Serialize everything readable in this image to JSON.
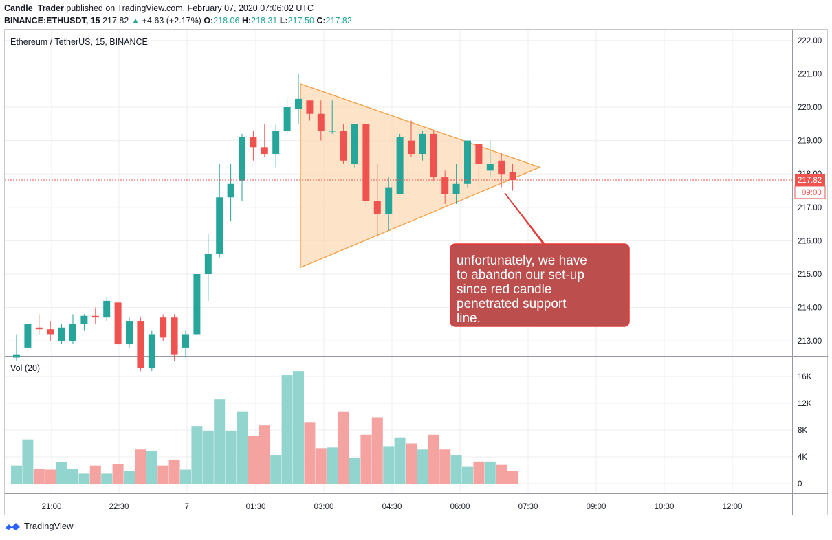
{
  "header": {
    "publisher": "Candle_Trader",
    "published_text": "published on TradingView.com, February 07, 2020 07:06:02 UTC",
    "symbol": "BINANCE:ETHUSDT, 15",
    "last": "217.82",
    "change": "+4.63 (+2.17%)",
    "o_label": "O:",
    "o": "218.06",
    "h_label": "H:",
    "h": "218.31",
    "l_label": "L:",
    "l": "217.50",
    "c_label": "C:",
    "c": "217.82"
  },
  "legend": {
    "main": "Ethereum / TetherUS, 15, BINANCE",
    "volume": "Vol (20)"
  },
  "price_badge": {
    "value": "217.82",
    "countdown": "09:00"
  },
  "callout": {
    "lines": [
      "unfortunately, we have",
      "to abandon our set-up",
      "since red candle",
      "penetrated support",
      "line."
    ]
  },
  "footer": {
    "brand": "TradingView"
  },
  "colors": {
    "up": "#26a69a",
    "down": "#ef5350",
    "vol_up": "#92d4ce",
    "vol_down": "#f4a3a1",
    "triangle_fill": "#fcd9b5",
    "triangle_stroke": "#f39c3c",
    "callout_fill": "#b84545",
    "callout_stroke": "#e53935"
  },
  "chart_data": {
    "type": "candlestick",
    "price_axis": {
      "ticks": [
        "222.00",
        "221.00",
        "220.00",
        "219.00",
        "218.00",
        "217.00",
        "216.00",
        "215.00",
        "214.00",
        "213.00"
      ],
      "range": [
        212.5,
        222.2
      ]
    },
    "volume_axis": {
      "ticks": [
        "16K",
        "12K",
        "8K",
        "4K",
        "0"
      ],
      "range": [
        0,
        17000
      ]
    },
    "time_axis": {
      "ticks": [
        "21:00",
        "22:30",
        "7",
        "01:30",
        "03:00",
        "04:30",
        "06:00",
        "07:30",
        "09:00",
        "10:30",
        "12:00"
      ]
    },
    "grid": true,
    "candles": [
      {
        "o": 212.5,
        "h": 213.2,
        "l": 212.4,
        "c": 212.6,
        "v": 2700
      },
      {
        "o": 212.8,
        "h": 213.5,
        "l": 212.7,
        "c": 213.5,
        "v": 6600
      },
      {
        "o": 213.4,
        "h": 213.8,
        "l": 213.2,
        "c": 213.35,
        "v": 2200
      },
      {
        "o": 213.35,
        "h": 213.6,
        "l": 213.0,
        "c": 213.2,
        "v": 2100
      },
      {
        "o": 213.0,
        "h": 213.5,
        "l": 212.9,
        "c": 213.4,
        "v": 3200
      },
      {
        "o": 213.0,
        "h": 213.8,
        "l": 212.9,
        "c": 213.5,
        "v": 2200
      },
      {
        "o": 213.5,
        "h": 213.8,
        "l": 213.3,
        "c": 213.75,
        "v": 1500
      },
      {
        "o": 213.75,
        "h": 214.0,
        "l": 213.5,
        "c": 213.7,
        "v": 2700
      },
      {
        "o": 213.7,
        "h": 214.3,
        "l": 213.6,
        "c": 214.2,
        "v": 1500
      },
      {
        "o": 214.15,
        "h": 214.2,
        "l": 212.85,
        "c": 212.9,
        "v": 2900
      },
      {
        "o": 212.9,
        "h": 213.7,
        "l": 212.8,
        "c": 213.6,
        "v": 1900
      },
      {
        "o": 213.6,
        "h": 213.7,
        "l": 212.1,
        "c": 212.2,
        "v": 5100
      },
      {
        "o": 212.2,
        "h": 213.3,
        "l": 212.1,
        "c": 213.2,
        "v": 4900
      },
      {
        "o": 213.7,
        "h": 213.8,
        "l": 213.0,
        "c": 213.1,
        "v": 2700
      },
      {
        "o": 213.7,
        "h": 213.8,
        "l": 212.4,
        "c": 212.6,
        "v": 3600
      },
      {
        "o": 212.8,
        "h": 213.3,
        "l": 212.5,
        "c": 213.2,
        "v": 2100
      },
      {
        "o": 213.2,
        "h": 215.0,
        "l": 213.1,
        "c": 215.0,
        "v": 8600
      },
      {
        "o": 215.0,
        "h": 216.2,
        "l": 214.2,
        "c": 215.6,
        "v": 7800
      },
      {
        "o": 215.6,
        "h": 218.3,
        "l": 215.5,
        "c": 217.3,
        "v": 12600
      },
      {
        "o": 217.3,
        "h": 218.3,
        "l": 216.6,
        "c": 217.7,
        "v": 7900
      },
      {
        "o": 217.8,
        "h": 219.2,
        "l": 217.2,
        "c": 219.1,
        "v": 10800
      },
      {
        "o": 219.1,
        "h": 219.3,
        "l": 218.4,
        "c": 218.8,
        "v": 7100
      },
      {
        "o": 218.8,
        "h": 219.5,
        "l": 218.5,
        "c": 218.6,
        "v": 8700
      },
      {
        "o": 218.6,
        "h": 219.5,
        "l": 218.2,
        "c": 219.3,
        "v": 4200
      },
      {
        "o": 219.3,
        "h": 220.3,
        "l": 219.2,
        "c": 220.0,
        "v": 16200
      },
      {
        "o": 219.95,
        "h": 221.0,
        "l": 219.5,
        "c": 220.25,
        "v": 16800
      },
      {
        "o": 220.2,
        "h": 220.2,
        "l": 219.6,
        "c": 219.8,
        "v": 9200
      },
      {
        "o": 219.8,
        "h": 220.2,
        "l": 219.0,
        "c": 219.3,
        "v": 5300
      },
      {
        "o": 219.3,
        "h": 220.2,
        "l": 219.2,
        "c": 219.3,
        "v": 5400
      },
      {
        "o": 219.3,
        "h": 219.5,
        "l": 218.3,
        "c": 218.4,
        "v": 10800
      },
      {
        "o": 218.3,
        "h": 219.5,
        "l": 218.2,
        "c": 219.5,
        "v": 3900
      },
      {
        "o": 219.5,
        "h": 219.5,
        "l": 217.0,
        "c": 217.2,
        "v": 7300
      },
      {
        "o": 217.2,
        "h": 218.3,
        "l": 216.1,
        "c": 216.8,
        "v": 9900
      },
      {
        "o": 216.8,
        "h": 217.9,
        "l": 216.3,
        "c": 217.6,
        "v": 5600
      },
      {
        "o": 217.4,
        "h": 219.2,
        "l": 217.4,
        "c": 219.1,
        "v": 6900
      },
      {
        "o": 219.0,
        "h": 219.6,
        "l": 218.5,
        "c": 218.6,
        "v": 6000
      },
      {
        "o": 218.6,
        "h": 219.3,
        "l": 218.4,
        "c": 219.2,
        "v": 5100
      },
      {
        "o": 219.2,
        "h": 219.3,
        "l": 217.8,
        "c": 217.9,
        "v": 7300
      },
      {
        "o": 217.9,
        "h": 218.1,
        "l": 217.1,
        "c": 217.4,
        "v": 5100
      },
      {
        "o": 217.4,
        "h": 218.3,
        "l": 217.1,
        "c": 217.7,
        "v": 4200
      },
      {
        "o": 217.7,
        "h": 219.0,
        "l": 217.6,
        "c": 219.0,
        "v": 2500
      },
      {
        "o": 218.9,
        "h": 218.9,
        "l": 217.6,
        "c": 218.3,
        "v": 3300
      },
      {
        "o": 218.1,
        "h": 219.0,
        "l": 217.9,
        "c": 218.3,
        "v": 3300
      },
      {
        "o": 218.4,
        "h": 218.6,
        "l": 217.6,
        "c": 218.0,
        "v": 2800
      },
      {
        "o": 218.06,
        "h": 218.31,
        "l": 217.5,
        "c": 217.82,
        "v": 1900
      }
    ],
    "annotations": [
      "unfortunately, we have to abandon our set-up since red candle penetrated support line."
    ]
  }
}
